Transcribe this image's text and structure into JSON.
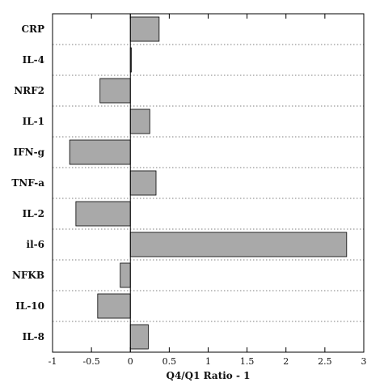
{
  "chart_data": {
    "type": "bar",
    "orientation": "horizontal",
    "categories": [
      "CRP",
      "IL-4",
      "NRF2",
      "IL-1",
      "IFN-g",
      "TNF-a",
      "IL-2",
      "il-6",
      "NFKB",
      "IL-10",
      "IL-8"
    ],
    "values": [
      0.37,
      0.01,
      -0.39,
      0.25,
      -0.78,
      0.33,
      -0.7,
      2.78,
      -0.13,
      -0.42,
      0.23
    ],
    "xlabel": "Q4/Q1 Ratio - 1",
    "xlim": [
      -1,
      3
    ],
    "xticks": [
      -1,
      -0.5,
      0,
      0.5,
      1,
      1.5,
      2,
      2.5,
      3
    ],
    "xtick_labels": [
      "-1",
      "-0.5",
      "0",
      "0.5",
      "1",
      "1.5",
      "2",
      "2.5",
      "3"
    ],
    "grid": false,
    "category_separators": "dotted",
    "colors": {
      "bar_fill": "#a9a9a9",
      "bar_stroke": "#000000",
      "frame": "#000000"
    }
  }
}
